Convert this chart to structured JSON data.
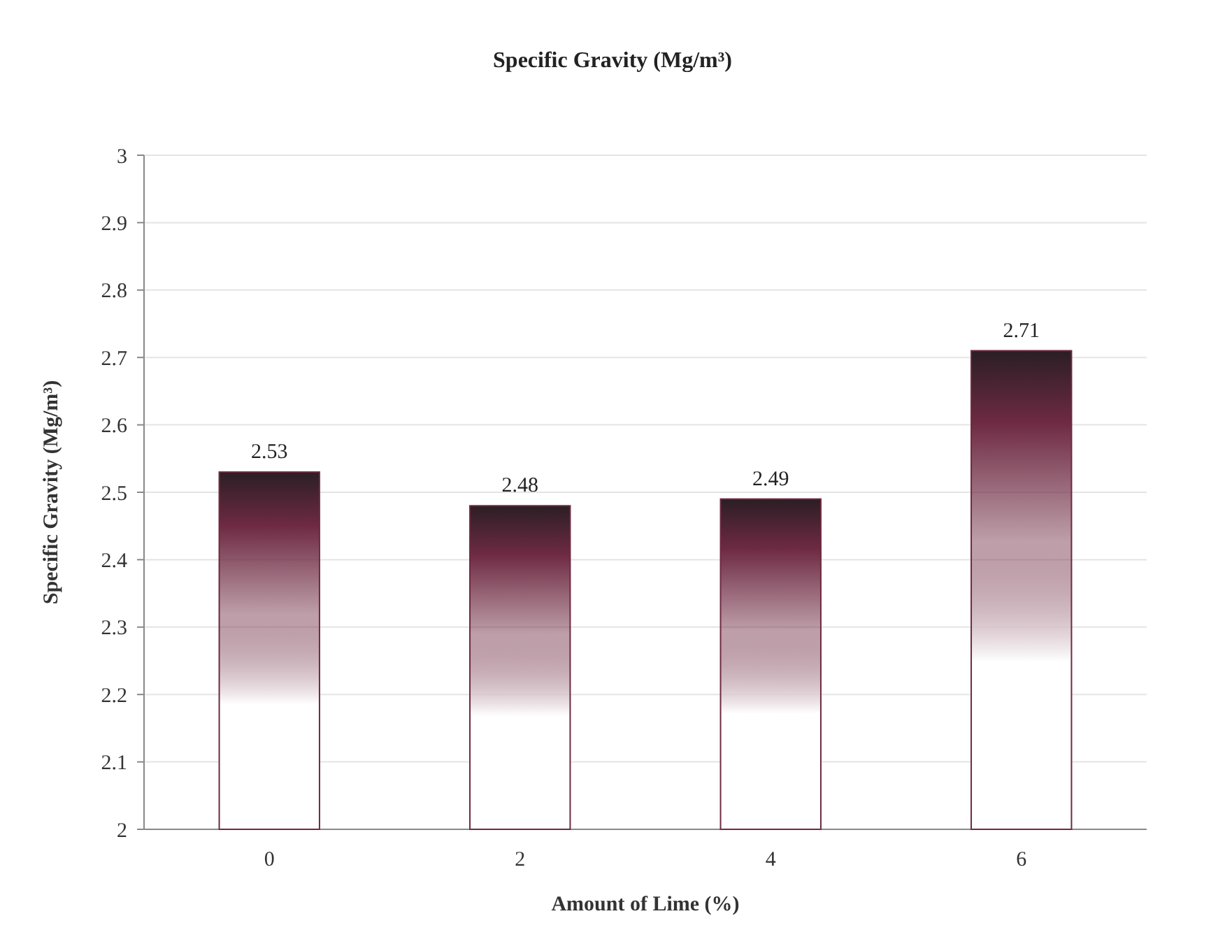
{
  "chart_data": {
    "type": "bar",
    "title": "Specific Gravity (Mg/m³)",
    "xlabel": "Amount of Lime (%)",
    "ylabel": "Specific Gravity (Mg/m³)",
    "categories": [
      "0",
      "2",
      "4",
      "6"
    ],
    "values": [
      2.53,
      2.48,
      2.49,
      2.71
    ],
    "color": "#6e2a42",
    "ylim": [
      2,
      3
    ],
    "yticks": [
      2,
      2.1,
      2.2,
      2.3,
      2.4,
      2.5,
      2.6,
      2.7,
      2.8,
      2.9,
      3
    ],
    "grid": "y",
    "data_labels": true
  }
}
